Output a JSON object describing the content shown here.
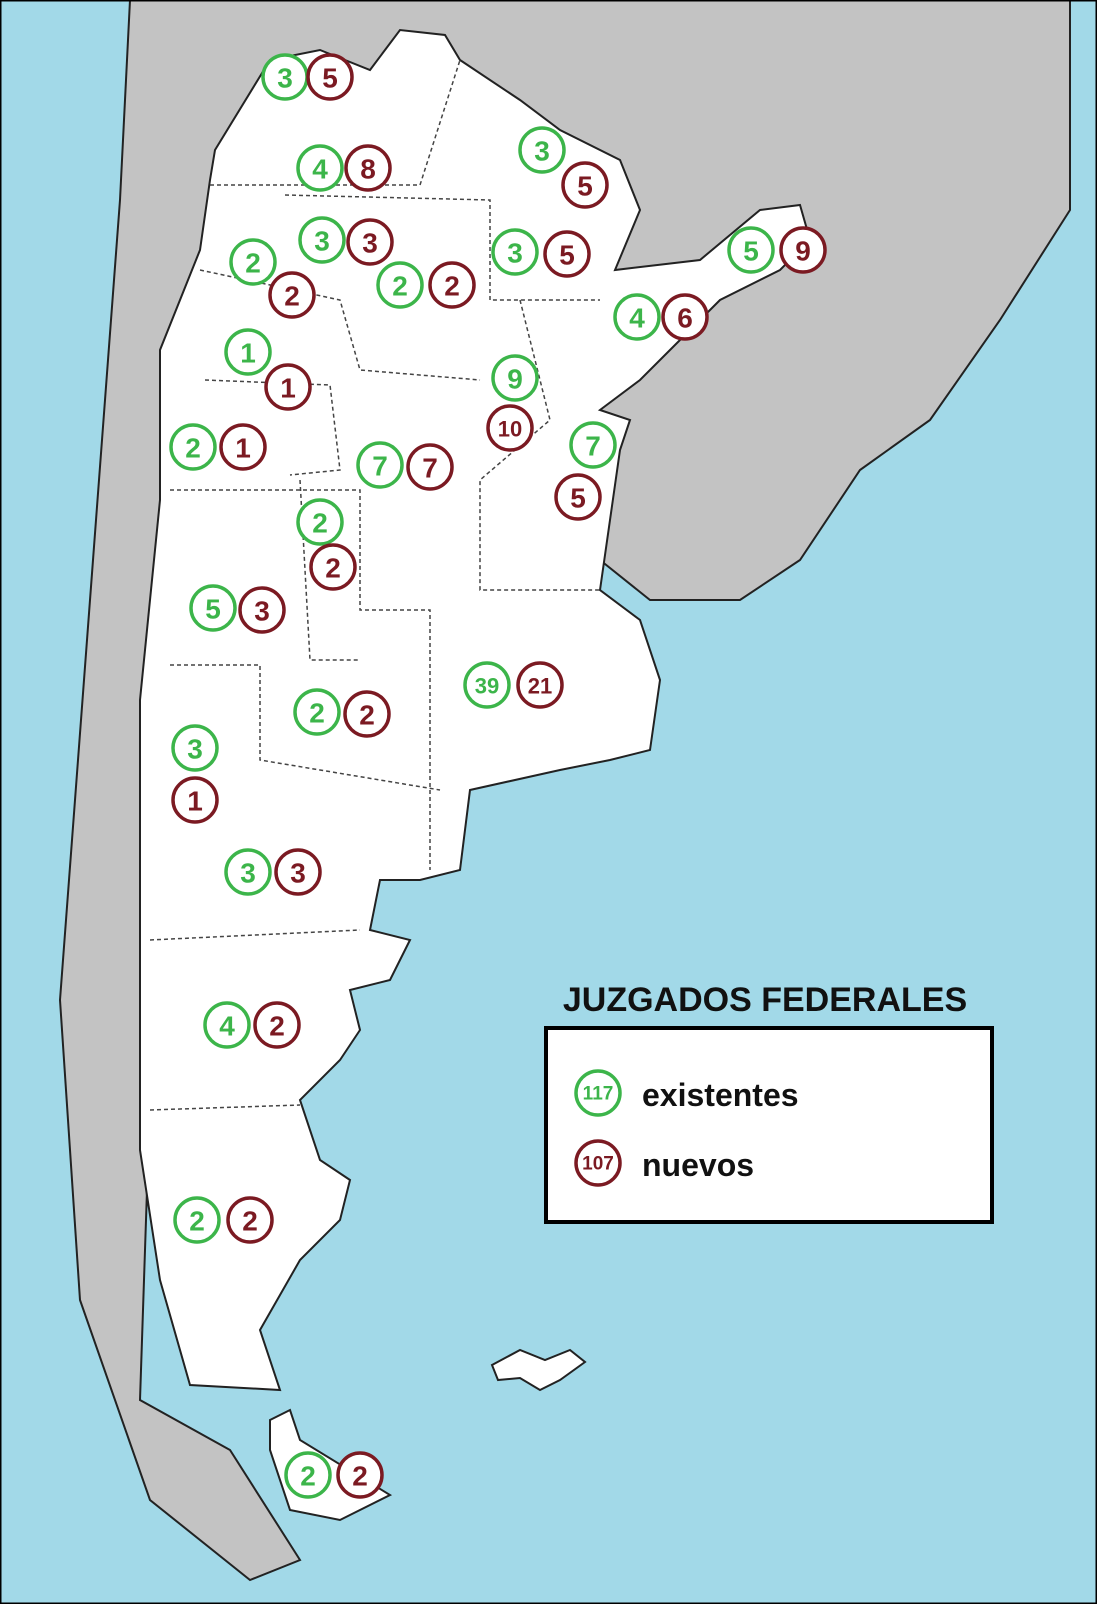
{
  "title": "JUZGADOS FEDERALES",
  "legend": [
    {
      "count": 117,
      "label": "existentes"
    },
    {
      "count": 107,
      "label": "nuevos"
    }
  ],
  "markers": [
    {
      "existing": 3,
      "new": 5
    },
    {
      "existing": 4,
      "new": 8
    },
    {
      "existing": 3,
      "new": 5
    },
    {
      "existing": 3,
      "new": 3
    },
    {
      "existing": 2,
      "new": 2
    },
    {
      "existing": 2,
      "new": 2
    },
    {
      "existing": 3,
      "new": 5
    },
    {
      "existing": 5,
      "new": 9
    },
    {
      "existing": 4,
      "new": 6
    },
    {
      "existing": 1,
      "new": 1
    },
    {
      "existing": 9,
      "new": 10
    },
    {
      "existing": 2,
      "new": 1
    },
    {
      "existing": 7,
      "new": 7
    },
    {
      "existing": 7,
      "new": 5
    },
    {
      "existing": 2,
      "new": 2
    },
    {
      "existing": 5,
      "new": 3
    },
    {
      "existing": 39,
      "new": 21
    },
    {
      "existing": 2,
      "new": 2
    },
    {
      "existing": 3,
      "new": 1
    },
    {
      "existing": 3,
      "new": 3
    },
    {
      "existing": 4,
      "new": 2
    },
    {
      "existing": 2,
      "new": 2
    },
    {
      "existing": 2,
      "new": 2
    }
  ]
}
